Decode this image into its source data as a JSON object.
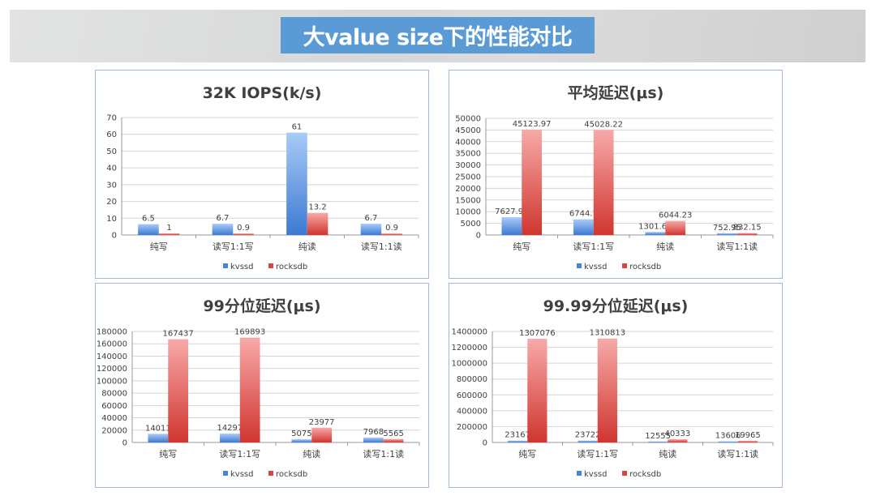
{
  "page_title": "大value size下的性能对比",
  "chart_data": [
    {
      "type": "bar",
      "title": "32K IOPS(k/s)",
      "categories": [
        "纯写",
        "读写1:1写",
        "纯读",
        "读写1:1读"
      ],
      "series": [
        {
          "name": "kvssd",
          "values": [
            6.5,
            6.7,
            61,
            6.7
          ],
          "labels": [
            "6.5",
            "6.7",
            "61",
            "6.7"
          ]
        },
        {
          "name": "rocksdb",
          "values": [
            1,
            0.9,
            13.2,
            0.9
          ],
          "labels": [
            "1",
            "0.9",
            "13.2",
            "0.9"
          ]
        }
      ],
      "ylim": [
        0,
        70
      ],
      "yticks": [
        0,
        10,
        20,
        30,
        40,
        50,
        60,
        70
      ],
      "grid": true,
      "legend": "bottom"
    },
    {
      "type": "bar",
      "title": "平均延迟(μs)",
      "categories": [
        "纯写",
        "读写1:1写",
        "纯读",
        "读写1:1读"
      ],
      "series": [
        {
          "name": "kvssd",
          "values": [
            7627.92,
            6744.7,
            1301.67,
            752.95
          ],
          "labels": [
            "7627.92",
            "6744.7",
            "1301.67",
            "752.95"
          ]
        },
        {
          "name": "rocksdb",
          "values": [
            45123.97,
            45028.22,
            6044.23,
            832.15
          ],
          "labels": [
            "45123.97",
            "45028.22",
            "6044.23",
            "832.15"
          ]
        }
      ],
      "ylim": [
        0,
        50000
      ],
      "yticks": [
        0,
        5000,
        10000,
        15000,
        20000,
        25000,
        30000,
        35000,
        40000,
        45000,
        50000
      ],
      "grid": true,
      "legend": "bottom"
    },
    {
      "type": "bar",
      "title": "99分位延迟(μs)",
      "categories": [
        "纯写",
        "读写1:1写",
        "纯读",
        "读写1:1读"
      ],
      "series": [
        {
          "name": "kvssd",
          "values": [
            14011,
            14297,
            5075,
            7968
          ],
          "labels": [
            "14011",
            "14297",
            "5075",
            "7968"
          ]
        },
        {
          "name": "rocksdb",
          "values": [
            167437,
            169893,
            23977,
            5565
          ],
          "labels": [
            "167437",
            "169893",
            "23977",
            "5565"
          ]
        }
      ],
      "ylim": [
        0,
        180000
      ],
      "yticks": [
        0,
        20000,
        40000,
        60000,
        80000,
        100000,
        120000,
        140000,
        160000,
        180000
      ],
      "grid": true,
      "legend": "bottom"
    },
    {
      "type": "bar",
      "title": "99.99分位延迟(μs)",
      "categories": [
        "纯写",
        "读写1:1写",
        "纯读",
        "读写1:1读"
      ],
      "series": [
        {
          "name": "kvssd",
          "values": [
            23167,
            23722,
            12555,
            13606
          ],
          "labels": [
            "23167",
            "23722",
            "12555",
            "13606"
          ]
        },
        {
          "name": "rocksdb",
          "values": [
            1307076,
            1310813,
            40333,
            19965
          ],
          "labels": [
            "1307076",
            "1310813",
            "40333",
            "19965"
          ]
        }
      ],
      "ylim": [
        0,
        1400000
      ],
      "yticks": [
        0,
        200000,
        400000,
        600000,
        800000,
        1000000,
        1200000,
        1400000
      ],
      "grid": true,
      "legend": "bottom"
    }
  ],
  "colors": {
    "kvssd": "#4a86d8",
    "rocksdb": "#d9463f",
    "title_bg": "#5b9bd5"
  }
}
